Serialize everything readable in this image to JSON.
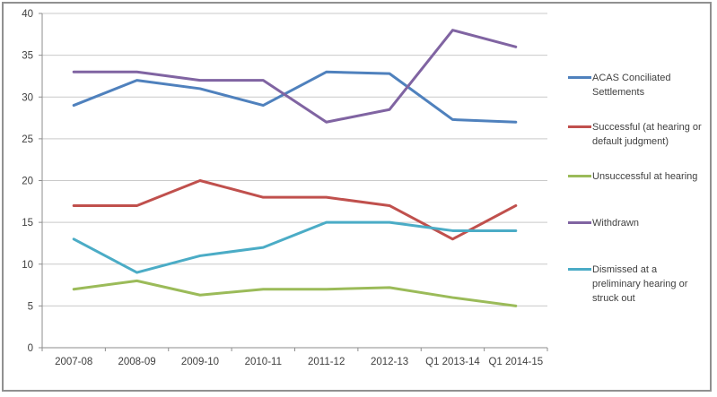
{
  "chart_data": {
    "type": "line",
    "title": "",
    "xlabel": "",
    "ylabel": "",
    "categories": [
      "2007-08",
      "2008-09",
      "2009-10",
      "2010-11",
      "2011-12",
      "2012-13",
      "Q1 2013-14",
      "Q1 2014-15"
    ],
    "series": [
      {
        "name": "ACAS Conciliated Settlements",
        "color": "#4F81BD",
        "values": [
          29,
          32,
          31,
          29,
          33,
          32.8,
          27.3,
          27
        ]
      },
      {
        "name": "Successful (at hearing or default judgment)",
        "color": "#C0504D",
        "values": [
          17,
          17,
          20,
          18,
          18,
          17,
          13,
          17
        ]
      },
      {
        "name": "Unsuccessful at hearing",
        "color": "#9BBB59",
        "values": [
          7,
          8,
          6.3,
          7,
          7,
          7.2,
          6,
          5
        ]
      },
      {
        "name": "Withdrawn",
        "color": "#8064A2",
        "values": [
          33,
          33,
          32,
          32,
          27,
          28.5,
          38,
          36
        ]
      },
      {
        "name": "Dismissed at a preliminary hearing or struck out",
        "color": "#4BACC6",
        "values": [
          13,
          9,
          11,
          12,
          15,
          15,
          14,
          14
        ]
      }
    ],
    "ylim": [
      0,
      40
    ],
    "yticks": [
      0,
      5,
      10,
      15,
      20,
      25,
      30,
      35,
      40
    ],
    "grid": true,
    "legend_position": "right"
  },
  "colors": {
    "background": "#FFFFFF",
    "border": "#909090",
    "gridline": "#C9C9C9",
    "axis": "#8E8E8E",
    "text": "#3F3F3F"
  }
}
